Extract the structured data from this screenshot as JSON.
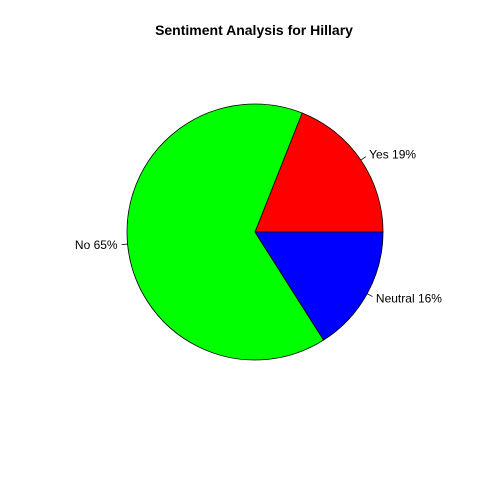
{
  "chart_data": {
    "type": "pie",
    "title": "Sentiment Analysis for Hillary",
    "slices": [
      {
        "label": "Yes 19%",
        "category": "Yes",
        "percent": 19,
        "color": "#ff0000"
      },
      {
        "label": "Neutral 16%",
        "category": "Neutral",
        "percent": 16,
        "color": "#0000ff"
      },
      {
        "label": "No 65%",
        "category": "No",
        "percent": 65,
        "color": "#00ff00"
      }
    ],
    "start_angle_deg": 0,
    "direction": "counter-clockwise-from-east"
  }
}
